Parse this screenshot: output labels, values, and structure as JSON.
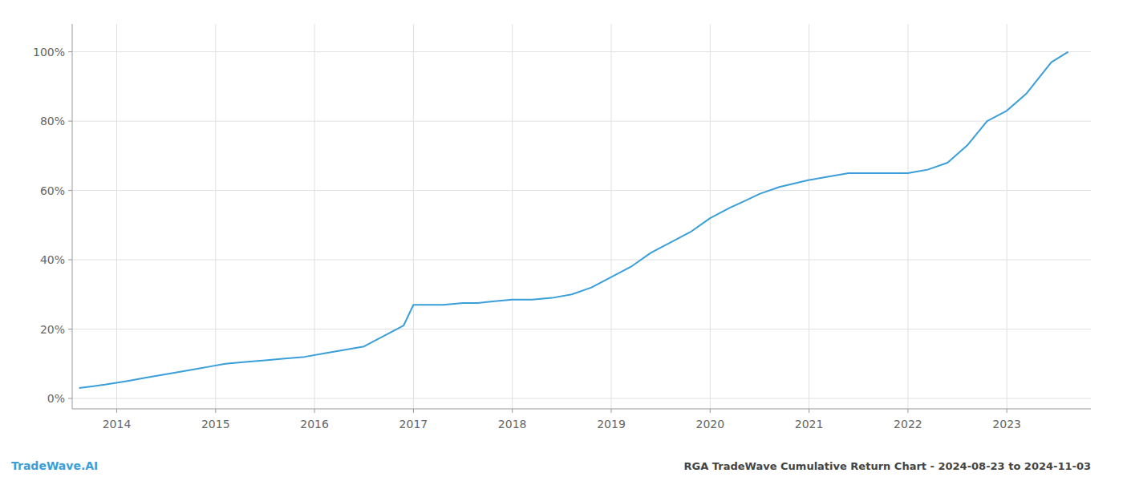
{
  "chart_data": {
    "type": "line",
    "title": "RGA TradeWave Cumulative Return Chart - 2024-08-23 to 2024-11-03",
    "annotations": [
      "TradeWave.AI"
    ],
    "color": "#3a9fd8",
    "grid": true,
    "x": [
      2013.62,
      2013.75,
      2013.88,
      2014.1,
      2014.3,
      2014.5,
      2014.7,
      2014.9,
      2015.1,
      2015.3,
      2015.5,
      2015.7,
      2015.9,
      2016.1,
      2016.3,
      2016.5,
      2016.7,
      2016.9,
      2017.0,
      2017.15,
      2017.3,
      2017.5,
      2017.65,
      2017.8,
      2018.0,
      2018.2,
      2018.4,
      2018.6,
      2018.8,
      2019.0,
      2019.2,
      2019.4,
      2019.6,
      2019.8,
      2020.0,
      2020.2,
      2020.35,
      2020.5,
      2020.7,
      2021.0,
      2021.2,
      2021.4,
      2021.6,
      2021.8,
      2022.0,
      2022.1,
      2022.2,
      2022.4,
      2022.6,
      2022.8,
      2023.0,
      2023.2,
      2023.45,
      2023.62
    ],
    "values": [
      3,
      3.5,
      4,
      5,
      6,
      7,
      8,
      9,
      10,
      10.5,
      11,
      11.5,
      12,
      13,
      14,
      15,
      18,
      21,
      27,
      27,
      27,
      27.5,
      27.5,
      28,
      28.5,
      28.5,
      29,
      30,
      32,
      35,
      38,
      42,
      45,
      48,
      52,
      55,
      57,
      59,
      61,
      63,
      64,
      65,
      65,
      65,
      65,
      65.5,
      66,
      68,
      73,
      80,
      83,
      88,
      97,
      100
    ],
    "xlim": [
      2013.55,
      2023.85
    ],
    "xticks": [
      2014,
      2015,
      2016,
      2017,
      2018,
      2019,
      2020,
      2021,
      2022,
      2023
    ],
    "ylim": [
      -3,
      108
    ],
    "yticks": [
      {
        "value": 0,
        "label": "0%"
      },
      {
        "value": 20,
        "label": "20%"
      },
      {
        "value": 40,
        "label": "40%"
      },
      {
        "value": 60,
        "label": "60%"
      },
      {
        "value": 80,
        "label": "80%"
      },
      {
        "value": 100,
        "label": "100%"
      }
    ]
  }
}
